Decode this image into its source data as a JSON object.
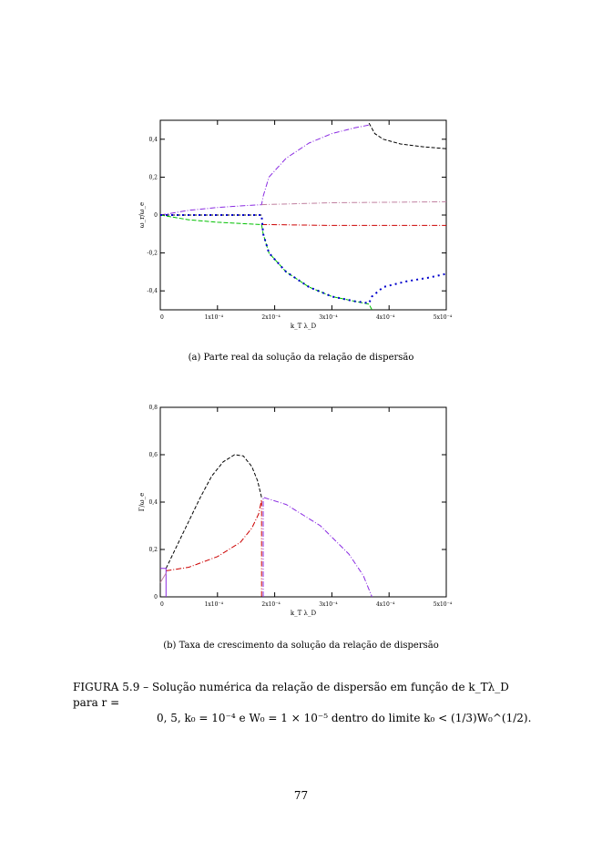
{
  "chart_data": [
    {
      "type": "line",
      "title": "",
      "xlabel": "k_T λ_D",
      "ylabel": "ω_r/ω_e",
      "xlim": [
        0,
        5
      ],
      "x_unit": "×10⁻⁴",
      "ylim": [
        -0.5,
        0.5
      ],
      "xticks": [
        "0",
        "1x10⁻⁴",
        "2x10⁻⁴",
        "3x10⁻⁴",
        "4x10⁻⁴",
        "5x10⁻⁴"
      ],
      "yticks": [
        {
          "v": 0.4,
          "t": "0,4"
        },
        {
          "v": 0.2,
          "t": "0,2"
        },
        {
          "v": 0,
          "t": "0"
        },
        {
          "v": -0.2,
          "t": "-0,2"
        },
        {
          "v": -0.4,
          "t": "-0,4"
        }
      ],
      "series": [
        {
          "name": "purple",
          "color": "#8a2be2",
          "dash": "6,2,1,2",
          "x": [
            0,
            0.5,
            1,
            1.5,
            1.77,
            1.8,
            1.9,
            2.2,
            2.6,
            3.0,
            3.4,
            3.65
          ],
          "y": [
            0,
            0.025,
            0.04,
            0.05,
            0.055,
            0.1,
            0.2,
            0.3,
            0.38,
            0.43,
            0.46,
            0.475
          ]
        },
        {
          "name": "black",
          "color": "#000000",
          "dash": "4,2",
          "x": [
            0,
            1.77
          ],
          "y": [
            0,
            0
          ]
        },
        {
          "name": "black-2",
          "color": "#000000",
          "dash": "4,2",
          "x": [
            3.65,
            3.75,
            3.9,
            4.2,
            4.6,
            5
          ],
          "y": [
            0.485,
            0.43,
            0.4,
            0.375,
            0.36,
            0.35
          ]
        },
        {
          "name": "pink",
          "color": "#c080a0",
          "dash": "6,2,1,2",
          "x": [
            1.77,
            3,
            5
          ],
          "y": [
            0.055,
            0.065,
            0.07
          ]
        },
        {
          "name": "red",
          "color": "#cc0000",
          "dash": "6,2,1,2",
          "x": [
            1.77,
            3,
            5
          ],
          "y": [
            -0.05,
            -0.055,
            -0.055
          ]
        },
        {
          "name": "green",
          "color": "#00c000",
          "dash": "5,2",
          "x": [
            0,
            0.5,
            1,
            1.5,
            1.77,
            1.8,
            1.9,
            2.2,
            2.6,
            3.0,
            3.4,
            3.65,
            3.7
          ],
          "y": [
            0,
            -0.025,
            -0.038,
            -0.046,
            -0.05,
            -0.1,
            -0.2,
            -0.3,
            -0.38,
            -0.43,
            -0.455,
            -0.47,
            -0.5
          ]
        },
        {
          "name": "blue",
          "color": "#0000cc",
          "dash": "2,4",
          "x": [
            0,
            1.77,
            1.8,
            1.9,
            2.2,
            2.6,
            3.0,
            3.4,
            3.65,
            3.7,
            3.9,
            4.3,
            4.7,
            5
          ],
          "y": [
            0,
            0,
            -0.1,
            -0.2,
            -0.3,
            -0.38,
            -0.43,
            -0.455,
            -0.465,
            -0.43,
            -0.38,
            -0.35,
            -0.33,
            -0.31
          ]
        }
      ]
    },
    {
      "type": "line",
      "title": "",
      "xlabel": "k_T λ_D",
      "ylabel": "Γ/ω_e",
      "xlim": [
        0,
        5
      ],
      "x_unit": "×10⁻⁴",
      "ylim": [
        0,
        0.8
      ],
      "xticks": [
        "0",
        "1x10⁻⁴",
        "2x10⁻⁴",
        "3x10⁻⁴",
        "4x10⁻⁴",
        "5x10⁻⁴"
      ],
      "yticks": [
        {
          "v": 0,
          "t": "0"
        },
        {
          "v": 0.2,
          "t": "0,2"
        },
        {
          "v": 0.4,
          "t": "0,4"
        },
        {
          "v": 0.6,
          "t": "0,6"
        },
        {
          "v": 0.8,
          "t": "0,8"
        }
      ],
      "series": [
        {
          "name": "black",
          "color": "#000000",
          "dash": "4,2",
          "x": [
            0.1,
            0.3,
            0.5,
            0.7,
            0.9,
            1.1,
            1.3,
            1.45,
            1.6,
            1.7,
            1.77
          ],
          "y": [
            0.12,
            0.22,
            0.32,
            0.42,
            0.51,
            0.57,
            0.6,
            0.595,
            0.55,
            0.49,
            0.42
          ]
        },
        {
          "name": "red",
          "color": "#cc0000",
          "dash": "6,2,1,2",
          "x": [
            0.1,
            0.5,
            1.0,
            1.4,
            1.6,
            1.72,
            1.77,
            1.77
          ],
          "y": [
            0.11,
            0.125,
            0.17,
            0.23,
            0.29,
            0.35,
            0.41,
            0
          ]
        },
        {
          "name": "purple",
          "color": "#8a2be2",
          "dash": "6,2,1,2",
          "x": [
            1.8,
            1.8,
            2.2,
            2.8,
            3.3,
            3.55,
            3.7
          ],
          "y": [
            0,
            0.42,
            0.39,
            0.3,
            0.18,
            0.09,
            0
          ]
        },
        {
          "name": "purple-2",
          "color": "#8a2be2",
          "dash": "",
          "x": [
            0.1,
            0.1,
            0
          ],
          "y": [
            0,
            0.12,
            0.12
          ]
        },
        {
          "name": "pink",
          "color": "#c080a0",
          "dash": "",
          "x": [
            0,
            0.1
          ],
          "y": [
            0.06,
            0.1
          ]
        }
      ]
    }
  ],
  "captions": {
    "a": "(a) Parte real da solução da relação de dispersão",
    "b": "(b) Taxa de crescimento da solução da relação de dispersão"
  },
  "figure": {
    "line1": "FIGURA 5.9 – Solução numérica da relação de dispersão em função de k_Tλ_D para r =",
    "line2": "0, 5, k₀ = 10⁻⁴ e W₀ = 1 × 10⁻⁵ dentro do limite k₀ < (1/3)W₀^(1/2)."
  },
  "page_number": "77"
}
